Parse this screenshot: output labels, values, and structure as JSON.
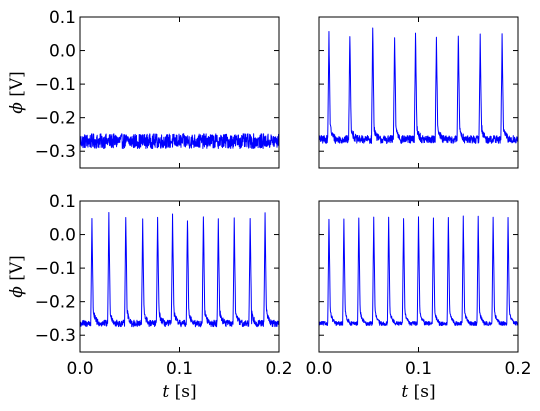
{
  "chart_data": [
    {
      "type": "line",
      "panel": "top-left",
      "xlim": [
        0.0,
        0.2
      ],
      "ylim": [
        -0.35,
        0.1
      ],
      "yticks": [
        "0.1",
        "0.0",
        "−0.1",
        "−0.2",
        "−0.3"
      ],
      "ytick_values": [
        0.1,
        0.0,
        -0.1,
        -0.2,
        -0.3
      ],
      "xticks": [],
      "xtick_values": [],
      "ylabel": "ϕ [V]",
      "xlabel": "",
      "baseline": -0.27,
      "noise": 0.022,
      "spike_times": [],
      "spike_peaks": [],
      "color": "#0000ff"
    },
    {
      "type": "line",
      "panel": "top-right",
      "xlim": [
        0.0,
        0.2
      ],
      "ylim": [
        -0.35,
        0.1
      ],
      "yticks": [],
      "ytick_values": [
        0.1,
        0.0,
        -0.1,
        -0.2,
        -0.3
      ],
      "xticks": [],
      "xtick_values": [],
      "ylabel": "",
      "xlabel": "",
      "baseline": -0.265,
      "noise": 0.012,
      "spike_times": [
        0.01,
        0.031,
        0.054,
        0.076,
        0.097,
        0.118,
        0.14,
        0.162,
        0.184
      ],
      "spike_peaks": [
        0.05,
        0.05,
        0.07,
        0.04,
        0.05,
        0.04,
        0.05,
        0.04,
        0.04
      ],
      "color": "#0000ff"
    },
    {
      "type": "line",
      "panel": "bottom-left",
      "xlim": [
        0.0,
        0.2
      ],
      "ylim": [
        -0.35,
        0.1
      ],
      "yticks": [
        "0.1",
        "0.0",
        "−0.1",
        "−0.2",
        "−0.3"
      ],
      "ytick_values": [
        0.1,
        0.0,
        -0.1,
        -0.2,
        -0.3
      ],
      "xticks": [
        "0.0",
        "0.1",
        "0.2"
      ],
      "xtick_values": [
        0.0,
        0.1,
        0.2
      ],
      "ylabel": "ϕ [V]",
      "xlabel": "t [s]",
      "baseline": -0.265,
      "noise": 0.01,
      "spike_times": [
        0.012,
        0.029,
        0.046,
        0.063,
        0.078,
        0.093,
        0.108,
        0.124,
        0.139,
        0.155,
        0.171,
        0.186
      ],
      "spike_peaks": [
        0.04,
        0.06,
        0.06,
        0.04,
        0.05,
        0.06,
        0.05,
        0.06,
        0.05,
        0.04,
        0.05,
        0.06
      ],
      "color": "#0000ff"
    },
    {
      "type": "line",
      "panel": "bottom-right",
      "xlim": [
        0.0,
        0.2
      ],
      "ylim": [
        -0.35,
        0.1
      ],
      "yticks": [],
      "ytick_values": [
        0.1,
        0.0,
        -0.1,
        -0.2,
        -0.3
      ],
      "xticks": [
        "0.0",
        "0.1",
        "0.2"
      ],
      "xtick_values": [
        0.0,
        0.1,
        0.2
      ],
      "ylabel": "",
      "xlabel": "t [s]",
      "baseline": -0.265,
      "noise": 0.006,
      "spike_times": [
        0.01,
        0.025,
        0.04,
        0.055,
        0.07,
        0.085,
        0.1,
        0.115,
        0.13,
        0.145,
        0.16,
        0.175,
        0.19
      ],
      "spike_peaks": [
        0.05,
        0.05,
        0.05,
        0.05,
        0.05,
        0.05,
        0.05,
        0.05,
        0.05,
        0.05,
        0.05,
        0.05,
        0.05
      ],
      "color": "#0000ff"
    }
  ]
}
